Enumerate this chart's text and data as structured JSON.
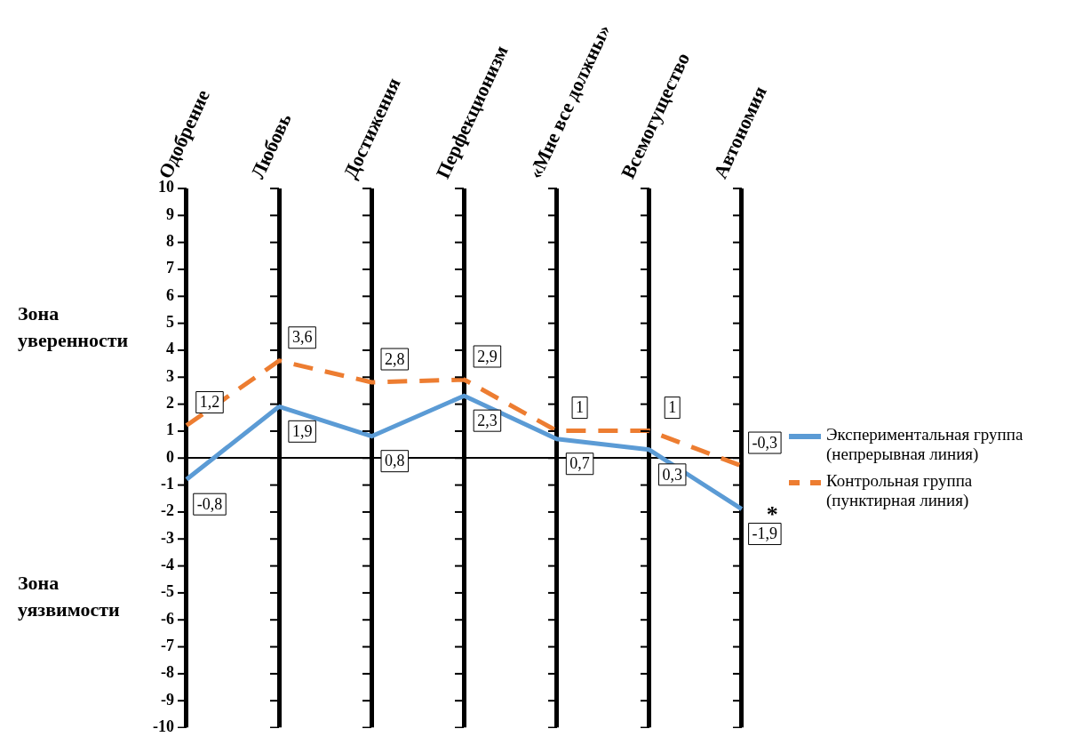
{
  "chart_data": {
    "type": "line",
    "categories": [
      "Одобрение",
      "Любовь",
      "Достижения",
      "Перфекционизм",
      "«Мне все должны»",
      "Всемогущество",
      "Автономия"
    ],
    "series": [
      {
        "name": "Экспериментальная группа (непрерывная линия)",
        "color": "#5b9bd5",
        "line_style": "solid",
        "values": [
          -0.8,
          1.9,
          0.8,
          2.3,
          0.7,
          0.3,
          -1.9
        ],
        "value_labels": [
          "-0,8",
          "1,9",
          "0,8",
          "2,3",
          "0,7",
          "0,3",
          "-1,9"
        ]
      },
      {
        "name": "Контрольная группа (пунктирная линия)",
        "color": "#ed7d31",
        "line_style": "dashed",
        "values": [
          1.2,
          3.6,
          2.8,
          2.9,
          1,
          1,
          -0.3
        ],
        "value_labels": [
          "1,2",
          "3,6",
          "2,8",
          "2,9",
          "1",
          "1",
          "-0,3"
        ]
      }
    ],
    "ylim": [
      -10,
      10
    ],
    "yticks": [
      -10,
      -9,
      -8,
      -7,
      -6,
      -5,
      -4,
      -3,
      -2,
      -1,
      0,
      1,
      2,
      3,
      4,
      5,
      6,
      7,
      8,
      9,
      10
    ],
    "grid": "x",
    "legend": "right",
    "marker": "none",
    "annotations": [
      "Зона уверенности",
      "Зона уязвимости",
      {
        "text": "*",
        "x": "Автономия",
        "y": -1.9
      }
    ]
  }
}
